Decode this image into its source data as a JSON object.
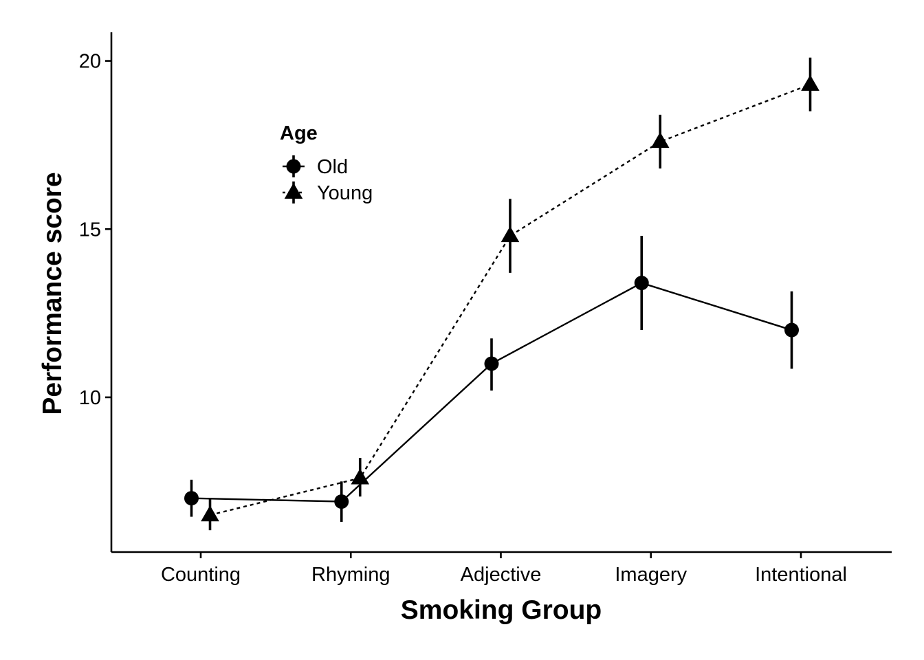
{
  "chart_data": {
    "type": "line",
    "xlabel": "Smoking Group",
    "ylabel": "Performance score",
    "categories": [
      "Counting",
      "Rhyming",
      "Adjective",
      "Imagery",
      "Intentional"
    ],
    "yticks": [
      10,
      15,
      20
    ],
    "ylim": [
      5.4,
      20.85
    ],
    "grid": false,
    "legend": {
      "title": "Age",
      "position": "inside-top-left",
      "entries": [
        "Old",
        "Young"
      ]
    },
    "series": [
      {
        "name": "Old",
        "marker": "circle",
        "line_style": "solid",
        "color": "#000000",
        "values": [
          7.0,
          6.9,
          11.0,
          13.4,
          12.0
        ],
        "error_low": [
          6.45,
          6.3,
          10.2,
          12.0,
          10.85
        ],
        "error_high": [
          7.55,
          7.5,
          11.75,
          14.8,
          13.15
        ]
      },
      {
        "name": "Young",
        "marker": "triangle",
        "line_style": "dotted",
        "color": "#000000",
        "values": [
          6.5,
          7.6,
          14.8,
          17.6,
          19.3
        ],
        "error_low": [
          6.05,
          7.05,
          13.7,
          16.8,
          18.5
        ],
        "error_high": [
          7.0,
          8.2,
          15.9,
          18.4,
          20.1
        ]
      }
    ]
  }
}
